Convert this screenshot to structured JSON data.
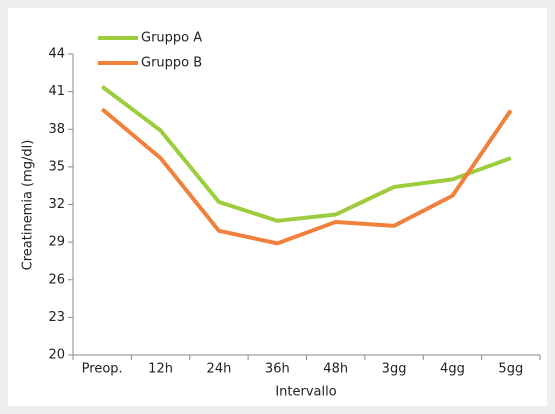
{
  "chart_data": {
    "type": "line",
    "xlabel": "Intervallo",
    "ylabel": "Creatinemia  (mg/dl)",
    "categories": [
      "Preop.",
      "12h",
      "24h",
      "36h",
      "48h",
      "3gg",
      "4gg",
      "5gg"
    ],
    "series": [
      {
        "name": "Gruppo A",
        "color": "#9ccd3c",
        "values": [
          41.4,
          37.9,
          32.2,
          30.7,
          31.2,
          33.4,
          34.0,
          35.7
        ]
      },
      {
        "name": "Gruppo B",
        "color": "#f0813c",
        "values": [
          39.6,
          35.7,
          29.9,
          28.9,
          30.6,
          30.3,
          32.7,
          39.5
        ]
      }
    ],
    "ylim": [
      20,
      44
    ],
    "yticks": [
      20,
      23,
      26,
      29,
      32,
      35,
      38,
      41,
      44
    ],
    "grid": false,
    "legend": "top-left"
  }
}
